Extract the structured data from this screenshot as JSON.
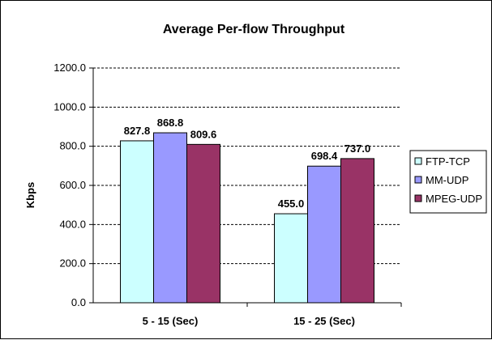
{
  "chart_data": {
    "type": "bar",
    "title": "Average Per-flow Throughput",
    "xlabel": "",
    "ylabel": "Kbps",
    "categories": [
      "5 - 15 (Sec)",
      "15 - 25 (Sec)"
    ],
    "series": [
      {
        "name": "FTP-TCP",
        "values": [
          827.8,
          455.0
        ],
        "labels": [
          "827.8",
          "455.0"
        ],
        "color": "#CCFFFF"
      },
      {
        "name": "MM-UDP",
        "values": [
          868.8,
          698.4
        ],
        "labels": [
          "868.8",
          "698.4"
        ],
        "color": "#9999FF"
      },
      {
        "name": "MPEG-UDP",
        "values": [
          809.6,
          737.0
        ],
        "labels": [
          "809.6",
          "737.0"
        ],
        "color": "#993366"
      }
    ],
    "ylim": [
      0,
      1200
    ],
    "yticks": [
      "0.0",
      "200.0",
      "400.0",
      "600.0",
      "800.0",
      "1000.0",
      "1200.0"
    ],
    "grid": "dashed horizontal",
    "legend_position": "right"
  }
}
